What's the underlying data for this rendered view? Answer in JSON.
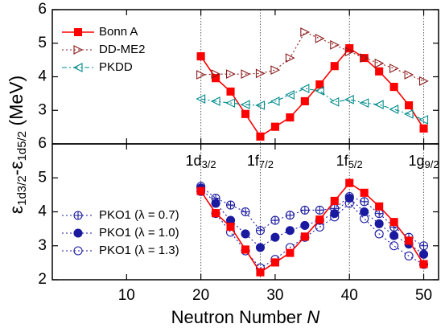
{
  "chart_data": [
    {
      "type": "line",
      "x": [
        20,
        22,
        24,
        26,
        28,
        30,
        32,
        34,
        36,
        38,
        40,
        42,
        44,
        46,
        48,
        50
      ],
      "series": [
        {
          "name": "Bonn A",
          "color": "#ff0000",
          "marker": "square",
          "dash": "none",
          "values": [
            4.61,
            3.96,
            3.56,
            2.89,
            2.22,
            2.51,
            2.79,
            3.27,
            3.77,
            4.32,
            4.85,
            4.56,
            4.16,
            3.7,
            3.15,
            2.46
          ]
        },
        {
          "name": "DD-ME2",
          "color": "#8b1a1a",
          "marker": "triangle-right",
          "dash": "2,3",
          "values": [
            4.06,
            4.08,
            4.08,
            4.08,
            4.1,
            4.2,
            4.56,
            5.33,
            5.14,
            4.95,
            4.75,
            4.56,
            4.4,
            4.25,
            4.06,
            3.87
          ]
        },
        {
          "name": "PKDD",
          "color": "#008b8b",
          "marker": "triangle-left",
          "dash": "6,3,2,3",
          "values": [
            3.34,
            3.27,
            3.22,
            3.17,
            3.15,
            3.27,
            3.46,
            3.65,
            3.58,
            3.25,
            3.32,
            3.22,
            3.17,
            3.03,
            2.89,
            2.72
          ]
        }
      ],
      "xlim": [
        0,
        52
      ],
      "ylim": [
        2,
        6
      ],
      "yticks": [
        3,
        4,
        5,
        6
      ],
      "legend": "upper left"
    },
    {
      "type": "line",
      "x": [
        20,
        22,
        24,
        26,
        28,
        30,
        32,
        34,
        36,
        38,
        40,
        42,
        44,
        46,
        48,
        50
      ],
      "series": [
        {
          "name": "PKO1 (λ = 0.7)",
          "color": "#1a1aa0",
          "marker": "crossed-circle",
          "dash": "2,3",
          "values": [
            4.75,
            4.4,
            4.2,
            4.0,
            3.45,
            3.75,
            3.9,
            4.05,
            4.05,
            4.1,
            4.45,
            4.3,
            3.95,
            3.55,
            3.25,
            3.0
          ]
        },
        {
          "name": "PKO1 (λ = 1.0)",
          "color": "#1a1aa0",
          "marker": "filled-circle",
          "dash": "2,3",
          "values": [
            4.7,
            4.25,
            3.75,
            3.35,
            2.95,
            3.25,
            3.45,
            3.6,
            3.75,
            3.95,
            4.4,
            4.0,
            3.65,
            3.3,
            3.05,
            2.75
          ]
        },
        {
          "name": "PKO1 (λ = 1.3)",
          "color": "#1a1aa0",
          "marker": "open-circle",
          "dash": "2,3",
          "values": [
            4.6,
            3.95,
            3.4,
            2.85,
            2.35,
            2.6,
            2.95,
            3.25,
            3.55,
            3.85,
            4.25,
            3.8,
            3.35,
            3.0,
            2.7,
            2.45
          ]
        },
        {
          "color": "#ff0000",
          "marker": "square",
          "dash": "none",
          "values": [
            4.61,
            3.96,
            3.56,
            2.89,
            2.22,
            2.51,
            2.79,
            3.27,
            3.77,
            4.32,
            4.85,
            4.56,
            4.16,
            3.7,
            3.15,
            2.46
          ]
        }
      ],
      "xlim": [
        0,
        52
      ],
      "ylim": [
        2,
        6
      ],
      "xticks": [
        10,
        20,
        30,
        40,
        50
      ],
      "yticks": [
        2,
        3,
        4,
        5,
        6
      ],
      "legend": "lower left",
      "shell_lines": [
        20,
        28,
        40,
        50
      ],
      "shell_labels": [
        [
          "1d",
          "3/2"
        ],
        [
          "1f",
          "7/2"
        ],
        [
          "1f",
          "5/2"
        ],
        [
          "1g",
          "9/2"
        ]
      ],
      "x_label": [
        "Neutron Number ",
        "N"
      ],
      "y_label": [
        "ε",
        "1d3/2",
        "-ε",
        "1d5/2",
        " (MeV)"
      ]
    }
  ]
}
